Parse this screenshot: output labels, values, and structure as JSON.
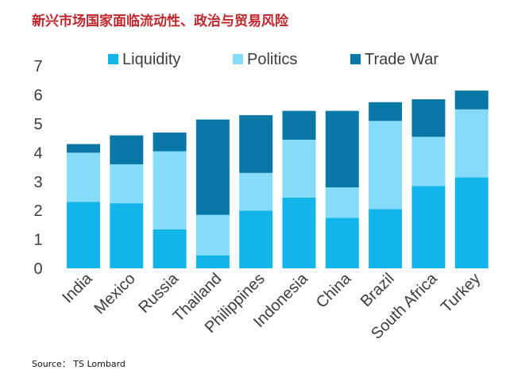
{
  "page_title": "新兴市场国家面临流动性、政治与贸易风险",
  "source_text": "Source： TS Lombard",
  "colors": {
    "liquidity": "#12b4ea",
    "politics": "#85dcf8",
    "trade_war": "#0a78a6",
    "tick_text": "#3c3c3c"
  },
  "chart_data": {
    "type": "bar",
    "stacked": true,
    "title": "",
    "xlabel": "",
    "ylabel": "",
    "ylim": [
      0,
      7
    ],
    "yticks": [
      0,
      1,
      2,
      3,
      4,
      5,
      6,
      7
    ],
    "grid": false,
    "legend_position": "top",
    "categories": [
      "India",
      "Mexico",
      "Russia",
      "Thailand",
      "Philippines",
      "Indonesia",
      "China",
      "Brazil",
      "South Africa",
      "Turkey"
    ],
    "series": [
      {
        "name": "Liquidity",
        "color": "#12b4ea",
        "values": [
          2.3,
          2.25,
          1.35,
          0.45,
          2.0,
          2.45,
          1.75,
          2.05,
          2.85,
          3.15
        ]
      },
      {
        "name": "Politics",
        "color": "#85dcf8",
        "values": [
          1.7,
          1.35,
          2.7,
          1.4,
          1.3,
          2.0,
          1.05,
          3.05,
          1.7,
          2.35
        ]
      },
      {
        "name": "Trade War",
        "color": "#0a78a6",
        "values": [
          0.3,
          1.0,
          0.65,
          3.3,
          2.0,
          1.0,
          2.65,
          0.65,
          1.3,
          0.65
        ]
      }
    ]
  }
}
